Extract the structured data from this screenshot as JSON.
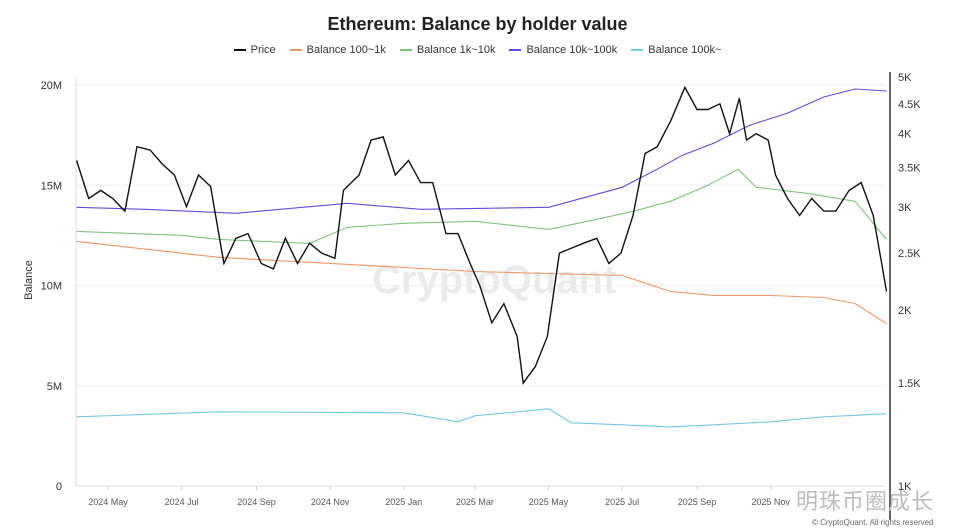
{
  "chart_data": {
    "type": "line",
    "title": "Ethereum: Balance by holder value",
    "ylabel": "Balance",
    "y_left": {
      "ticks": [
        "0",
        "5M",
        "10M",
        "15M",
        "20M"
      ],
      "range": [
        0,
        20000000
      ]
    },
    "y_right": {
      "ticks": [
        "1K",
        "1.5K",
        "2K",
        "2.5K",
        "3K",
        "3.5K",
        "4K",
        "4.5K",
        "5K"
      ],
      "range": [
        1000,
        5000
      ],
      "scale": "log"
    },
    "x_ticks": [
      "2024 May",
      "2024 Jul",
      "2024 Sep",
      "2024 Nov",
      "2025 Jan",
      "2025 Mar",
      "2025 May",
      "2025 Jul",
      "2025 Sep",
      "2025 Nov"
    ],
    "grid": true,
    "legend_position": "top",
    "series": [
      {
        "name": "Price",
        "axis": "right",
        "color": "#111111",
        "points": [
          [
            "2024-04-05",
            3600
          ],
          [
            "2024-04-15",
            3100
          ],
          [
            "2024-04-25",
            3200
          ],
          [
            "2024-05-05",
            3100
          ],
          [
            "2024-05-15",
            2950
          ],
          [
            "2024-05-25",
            3800
          ],
          [
            "2024-06-05",
            3750
          ],
          [
            "2024-06-15",
            3550
          ],
          [
            "2024-06-25",
            3400
          ],
          [
            "2024-07-05",
            3000
          ],
          [
            "2024-07-15",
            3400
          ],
          [
            "2024-07-25",
            3250
          ],
          [
            "2024-08-05",
            2400
          ],
          [
            "2024-08-15",
            2650
          ],
          [
            "2024-08-25",
            2700
          ],
          [
            "2024-09-05",
            2400
          ],
          [
            "2024-09-15",
            2350
          ],
          [
            "2024-09-25",
            2650
          ],
          [
            "2024-10-05",
            2400
          ],
          [
            "2024-10-15",
            2600
          ],
          [
            "2024-10-25",
            2500
          ],
          [
            "2024-11-05",
            2450
          ],
          [
            "2024-11-12",
            3200
          ],
          [
            "2024-11-25",
            3400
          ],
          [
            "2024-12-05",
            3900
          ],
          [
            "2024-12-15",
            3950
          ],
          [
            "2024-12-25",
            3400
          ],
          [
            "2025-01-05",
            3600
          ],
          [
            "2025-01-15",
            3300
          ],
          [
            "2025-01-25",
            3300
          ],
          [
            "2025-02-05",
            2700
          ],
          [
            "2025-02-15",
            2700
          ],
          [
            "2025-02-25",
            2400
          ],
          [
            "2025-03-05",
            2200
          ],
          [
            "2025-03-15",
            1900
          ],
          [
            "2025-03-25",
            2050
          ],
          [
            "2025-04-05",
            1800
          ],
          [
            "2025-04-10",
            1500
          ],
          [
            "2025-04-20",
            1600
          ],
          [
            "2025-04-30",
            1800
          ],
          [
            "2025-05-10",
            2500
          ],
          [
            "2025-05-20",
            2550
          ],
          [
            "2025-05-30",
            2600
          ],
          [
            "2025-06-10",
            2650
          ],
          [
            "2025-06-20",
            2400
          ],
          [
            "2025-06-30",
            2500
          ],
          [
            "2025-07-10",
            2900
          ],
          [
            "2025-07-20",
            3700
          ],
          [
            "2025-07-30",
            3800
          ],
          [
            "2025-08-10",
            4200
          ],
          [
            "2025-08-22",
            4800
          ],
          [
            "2025-09-01",
            4400
          ],
          [
            "2025-09-10",
            4400
          ],
          [
            "2025-09-20",
            4500
          ],
          [
            "2025-09-28",
            4000
          ],
          [
            "2025-10-06",
            4600
          ],
          [
            "2025-10-12",
            3900
          ],
          [
            "2025-10-20",
            4000
          ],
          [
            "2025-10-30",
            3900
          ],
          [
            "2025-11-05",
            3400
          ],
          [
            "2025-11-15",
            3100
          ],
          [
            "2025-11-25",
            2900
          ],
          [
            "2025-12-05",
            3100
          ],
          [
            "2025-12-15",
            2950
          ],
          [
            "2025-12-25",
            2950
          ],
          [
            "2026-01-05",
            3200
          ],
          [
            "2026-01-15",
            3300
          ],
          [
            "2026-01-25",
            2900
          ],
          [
            "2026-02-01",
            2400
          ],
          [
            "2026-02-05",
            2150
          ]
        ]
      },
      {
        "name": "Balance 100~1k",
        "axis": "left",
        "color": "#ef9560",
        "points": [
          [
            "2024-04-05",
            12200000
          ],
          [
            "2024-08-01",
            11400000
          ],
          [
            "2024-11-01",
            11100000
          ],
          [
            "2025-01-01",
            10900000
          ],
          [
            "2025-03-01",
            10700000
          ],
          [
            "2025-05-01",
            10600000
          ],
          [
            "2025-07-01",
            10500000
          ],
          [
            "2025-08-10",
            9700000
          ],
          [
            "2025-09-15",
            9500000
          ],
          [
            "2025-11-01",
            9500000
          ],
          [
            "2025-12-15",
            9400000
          ],
          [
            "2026-01-10",
            9100000
          ],
          [
            "2026-02-05",
            8100000
          ]
        ]
      },
      {
        "name": "Balance 1k~10k",
        "axis": "left",
        "color": "#7cc47a",
        "points": [
          [
            "2024-04-05",
            12700000
          ],
          [
            "2024-07-01",
            12500000
          ],
          [
            "2024-08-01",
            12300000
          ],
          [
            "2024-10-15",
            12100000
          ],
          [
            "2024-11-15",
            12900000
          ],
          [
            "2025-01-01",
            13100000
          ],
          [
            "2025-03-01",
            13200000
          ],
          [
            "2025-05-01",
            12800000
          ],
          [
            "2025-06-10",
            13300000
          ],
          [
            "2025-07-10",
            13700000
          ],
          [
            "2025-08-10",
            14200000
          ],
          [
            "2025-09-10",
            15000000
          ],
          [
            "2025-10-05",
            15800000
          ],
          [
            "2025-10-20",
            14900000
          ],
          [
            "2025-12-01",
            14600000
          ],
          [
            "2026-01-10",
            14200000
          ],
          [
            "2026-02-05",
            12300000
          ]
        ]
      },
      {
        "name": "Balance 10k~100k",
        "axis": "left",
        "color": "#5a4fd8",
        "points": [
          [
            "2024-04-05",
            13900000
          ],
          [
            "2024-06-01",
            13800000
          ],
          [
            "2024-08-15",
            13600000
          ],
          [
            "2024-11-15",
            14100000
          ],
          [
            "2025-01-15",
            13800000
          ],
          [
            "2025-05-01",
            13900000
          ],
          [
            "2025-07-01",
            14900000
          ],
          [
            "2025-07-30",
            15800000
          ],
          [
            "2025-08-20",
            16500000
          ],
          [
            "2025-09-15",
            17100000
          ],
          [
            "2025-10-15",
            18000000
          ],
          [
            "2025-11-15",
            18600000
          ],
          [
            "2025-12-15",
            19400000
          ],
          [
            "2026-01-10",
            19800000
          ],
          [
            "2026-02-05",
            19700000
          ]
        ]
      },
      {
        "name": "Balance 100k~",
        "axis": "left",
        "color": "#6cc9e3",
        "points": [
          [
            "2024-04-05",
            3450000
          ],
          [
            "2024-08-01",
            3700000
          ],
          [
            "2025-01-01",
            3650000
          ],
          [
            "2025-02-15",
            3200000
          ],
          [
            "2025-03-01",
            3500000
          ],
          [
            "2025-05-01",
            3850000
          ],
          [
            "2025-05-20",
            3150000
          ],
          [
            "2025-07-01",
            3050000
          ],
          [
            "2025-08-10",
            2950000
          ],
          [
            "2025-09-15",
            3050000
          ],
          [
            "2025-11-01",
            3200000
          ],
          [
            "2025-12-15",
            3450000
          ],
          [
            "2026-02-05",
            3600000
          ]
        ]
      }
    ]
  },
  "watermark": "CryptoQuant",
  "copyright": "© CryptoQuant. All rights reserved",
  "overlay_text": "明珠币圈成长"
}
